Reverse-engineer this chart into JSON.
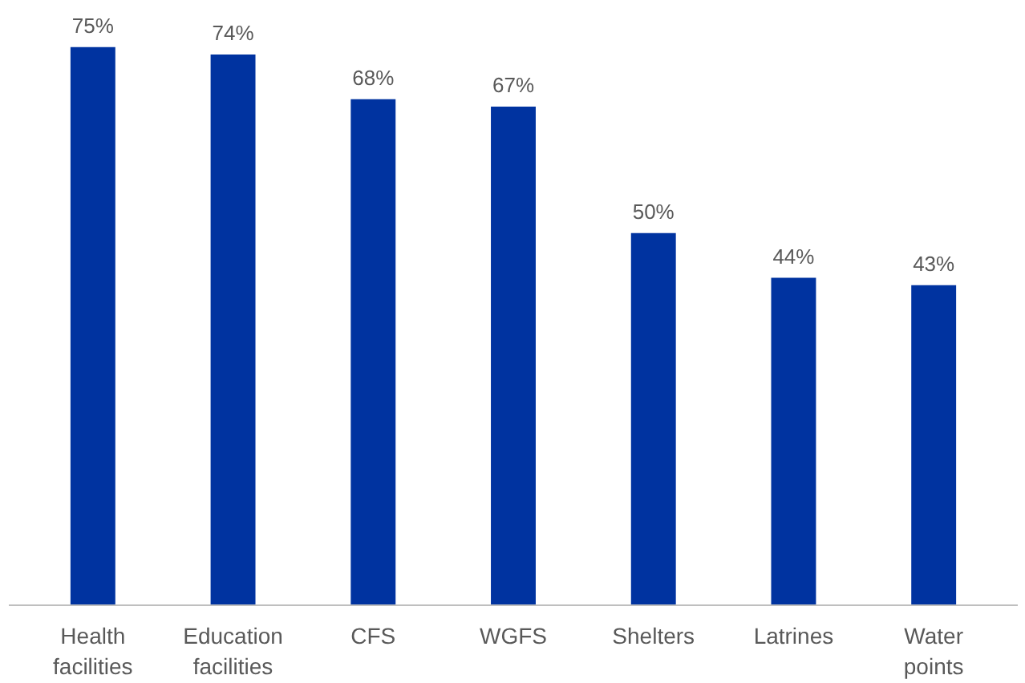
{
  "chart_data": {
    "type": "bar",
    "categories": [
      "Health facilities",
      "Education facilities",
      "CFS",
      "WGFS",
      "Shelters",
      "Latrines",
      "Water points"
    ],
    "values": [
      75,
      74,
      68,
      67,
      50,
      44,
      43
    ],
    "value_labels": [
      "75%",
      "74%",
      "68%",
      "67%",
      "50%",
      "44%",
      "43%"
    ],
    "color": "#0033a0"
  }
}
